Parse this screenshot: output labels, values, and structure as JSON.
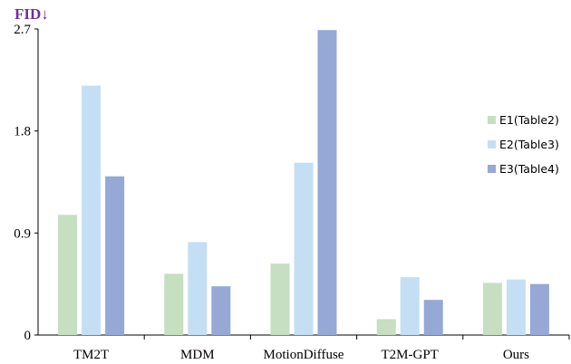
{
  "chart_data": {
    "type": "bar",
    "title": "FID↓",
    "categories": [
      "TM2T",
      "MDM",
      "MotionDiffuse",
      "T2M-GPT",
      "Ours"
    ],
    "series": [
      {
        "name": "E1(Table2)",
        "color": "#c5dfc0",
        "values": [
          1.06,
          0.54,
          0.63,
          0.14,
          0.46
        ]
      },
      {
        "name": "E2(Table3)",
        "color": "#c4dff3",
        "values": [
          2.2,
          0.82,
          1.52,
          0.51,
          0.49
        ]
      },
      {
        "name": "E3(Table4)",
        "color": "#95a8d6",
        "values": [
          1.4,
          0.43,
          2.69,
          0.31,
          0.45
        ]
      }
    ],
    "yticks": [
      "0",
      "0.9",
      "1.8",
      "2.7"
    ],
    "ylim": [
      0,
      2.7
    ],
    "grid": false,
    "legend_position": "right",
    "title_color": "#7030a0",
    "xlabel": "",
    "ylabel": ""
  }
}
